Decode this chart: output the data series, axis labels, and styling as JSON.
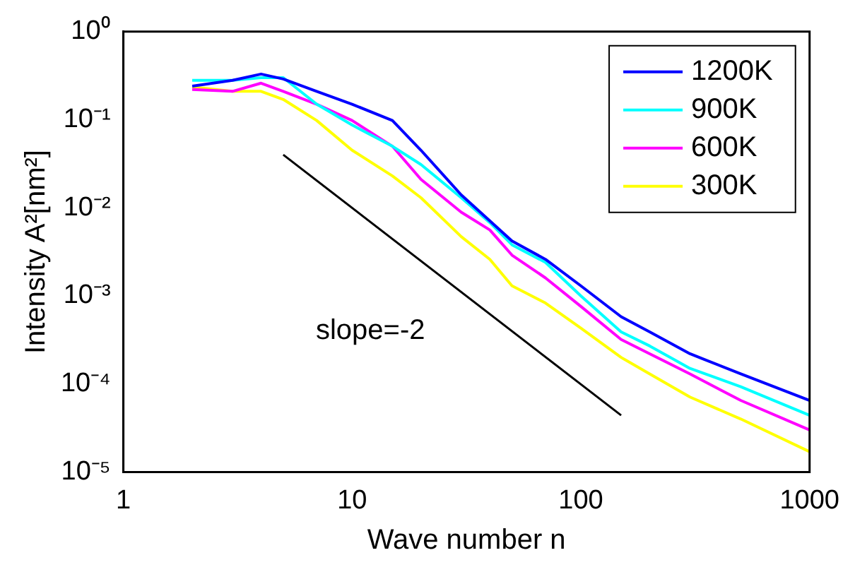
{
  "chart_data": {
    "type": "line",
    "xlabel": "Wave number n",
    "ylabel": "Intensity A²[nm²]",
    "log": "xy",
    "grid": false,
    "legend": "top right",
    "marker": "none",
    "line_style": "solid",
    "xlim": [
      1,
      1000
    ],
    "xticks": [
      1,
      10,
      100,
      1000
    ],
    "ylim": [
      1e-05,
      1
    ],
    "yticks": [
      {
        "value": 1e-05,
        "label": "10⁻⁵"
      },
      {
        "value": 0.0001,
        "label": "10⁻⁴"
      },
      {
        "value": 0.001,
        "label": "10⁻³"
      },
      {
        "value": 0.01,
        "label": "10⁻²"
      },
      {
        "value": 0.1,
        "label": "10⁻¹"
      },
      {
        "value": 1,
        "label": "10⁰"
      }
    ],
    "x": [
      2,
      3,
      4,
      5,
      7,
      10,
      15,
      20,
      30,
      40,
      50,
      70,
      100,
      150,
      200,
      300,
      500,
      1000
    ],
    "series": [
      {
        "name": "1200K",
        "color": "#0000ff",
        "values": [
          0.24,
          0.28,
          0.33,
          0.29,
          0.21,
          0.15,
          0.098,
          0.045,
          0.014,
          0.0071,
          0.0042,
          0.0026,
          0.0013,
          0.00058,
          0.00039,
          0.00022,
          0.00013,
          6.5e-05
        ]
      },
      {
        "name": "900K",
        "color": "#00ffff",
        "values": [
          0.28,
          0.28,
          0.3,
          0.3,
          0.15,
          0.087,
          0.05,
          0.031,
          0.013,
          0.0068,
          0.0038,
          0.0024,
          0.001,
          0.00039,
          0.00027,
          0.00015,
          9.3e-05,
          4.4e-05
        ]
      },
      {
        "name": "600K",
        "color": "#ff00ff",
        "values": [
          0.22,
          0.21,
          0.26,
          0.21,
          0.15,
          0.098,
          0.05,
          0.021,
          0.0089,
          0.0056,
          0.0029,
          0.0016,
          0.00076,
          0.00032,
          0.00022,
          0.00013,
          6.5e-05,
          3e-05
        ]
      },
      {
        "name": "300K",
        "color": "#ffff00",
        "values": [
          0.235,
          0.21,
          0.21,
          0.17,
          0.098,
          0.045,
          0.023,
          0.013,
          0.0047,
          0.0026,
          0.0013,
          0.00083,
          0.00043,
          0.0002,
          0.00013,
          7.1e-05,
          4e-05,
          1.7e-05
        ]
      },
      {
        "type": "line",
        "color": "#000000",
        "x": [
          5,
          150
        ],
        "values": [
          0.04,
          4.4e-05
        ]
      }
    ],
    "annotations": [
      "slope=-2"
    ]
  }
}
